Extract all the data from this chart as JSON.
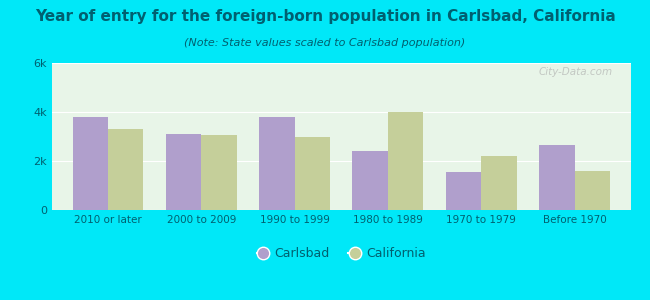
{
  "title": "Year of entry for the foreign-born population in Carlsbad, California",
  "subtitle": "(Note: State values scaled to Carlsbad population)",
  "categories": [
    "2010 or later",
    "2000 to 2009",
    "1990 to 1999",
    "1980 to 1989",
    "1970 to 1979",
    "Before 1970"
  ],
  "carlsbad_values": [
    3800,
    3100,
    3800,
    2400,
    1550,
    2650
  ],
  "california_values": [
    3300,
    3050,
    3000,
    4000,
    2200,
    1600
  ],
  "carlsbad_color": "#b09fcc",
  "california_color": "#c5cf9a",
  "background_outer": "#00e8f8",
  "background_inner": "#e8f5e8",
  "title_color": "#006070",
  "subtitle_color": "#006070",
  "tick_color": "#006070",
  "ylim": [
    0,
    6000
  ],
  "yticks": [
    0,
    2000,
    4000,
    6000
  ],
  "ytick_labels": [
    "0",
    "2k",
    "4k",
    "6k"
  ],
  "bar_width": 0.38,
  "title_fontsize": 11,
  "subtitle_fontsize": 8,
  "legend_labels": [
    "Carlsbad",
    "California"
  ],
  "watermark": "City-Data.com"
}
